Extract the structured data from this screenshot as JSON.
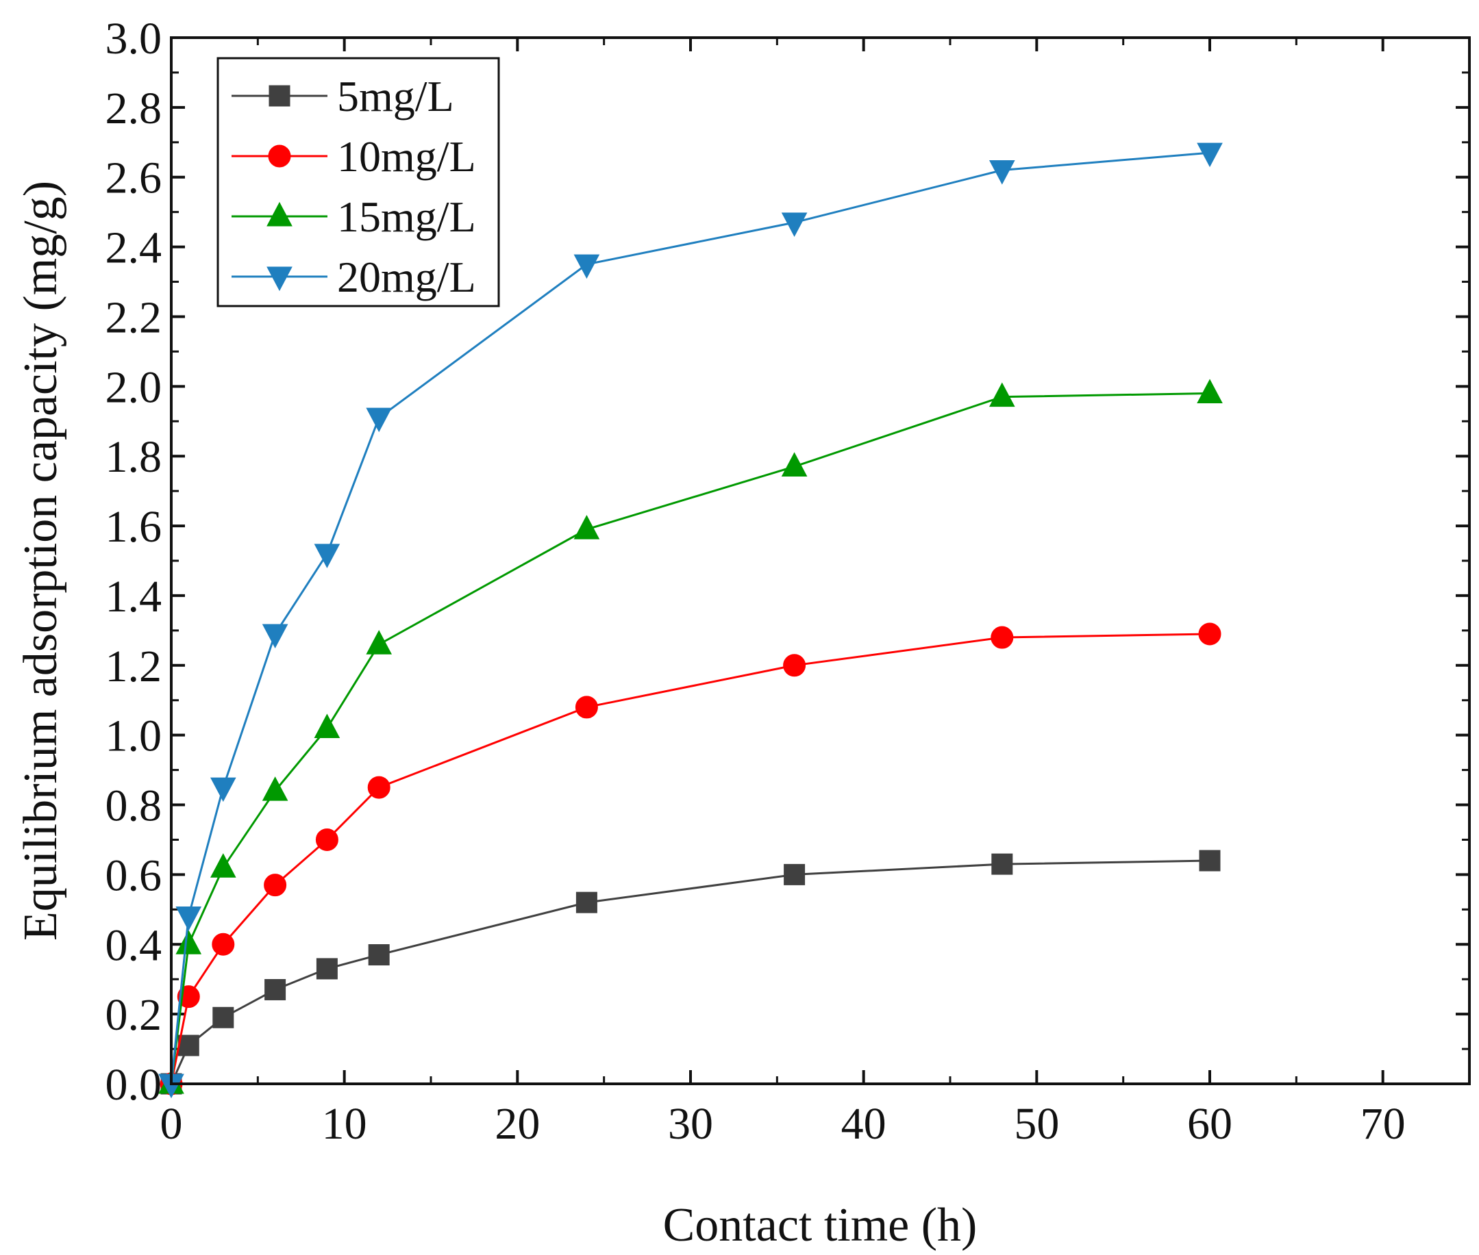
{
  "chart_data": {
    "type": "line",
    "title": "",
    "xlabel": "Contact time (h)",
    "ylabel": "Equilibrium adsorption capacity (mg/g)",
    "xlim": [
      0,
      75
    ],
    "ylim": [
      0,
      3.0
    ],
    "xticks": [
      0,
      10,
      20,
      30,
      40,
      50,
      60,
      70
    ],
    "xtick_labels": [
      "0",
      "10",
      "20",
      "30",
      "40",
      "50",
      "60",
      "70"
    ],
    "yticks": [
      0.0,
      0.2,
      0.4,
      0.6,
      0.8,
      1.0,
      1.2,
      1.4,
      1.6,
      1.8,
      2.0,
      2.2,
      2.4,
      2.6,
      2.8,
      3.0
    ],
    "ytick_labels": [
      "0.0",
      "0.2",
      "0.4",
      "0.6",
      "0.8",
      "1.0",
      "1.2",
      "1.4",
      "1.6",
      "1.8",
      "2.0",
      "2.2",
      "2.4",
      "2.6",
      "2.8",
      "3.0"
    ],
    "grid": false,
    "legend_position": "top-left",
    "x": [
      0,
      1,
      3,
      6,
      9,
      12,
      24,
      36,
      48,
      60
    ],
    "series": [
      {
        "name": "5mg/L",
        "marker": "square",
        "color": "#404040",
        "values": [
          0.0,
          0.11,
          0.19,
          0.27,
          0.33,
          0.37,
          0.52,
          0.6,
          0.63,
          0.64
        ]
      },
      {
        "name": "10mg/L",
        "marker": "circle",
        "color": "#ff0000",
        "values": [
          0.0,
          0.25,
          0.4,
          0.57,
          0.7,
          0.85,
          1.08,
          1.2,
          1.28,
          1.29
        ]
      },
      {
        "name": "15mg/L",
        "marker": "triangle-up",
        "color": "#009900",
        "values": [
          0.0,
          0.4,
          0.62,
          0.84,
          1.02,
          1.26,
          1.59,
          1.77,
          1.97,
          1.98
        ]
      },
      {
        "name": "20mg/L",
        "marker": "triangle-down",
        "color": "#1f7fbf",
        "values": [
          0.0,
          0.48,
          0.85,
          1.29,
          1.52,
          1.91,
          2.35,
          2.47,
          2.62,
          2.67
        ]
      }
    ]
  }
}
